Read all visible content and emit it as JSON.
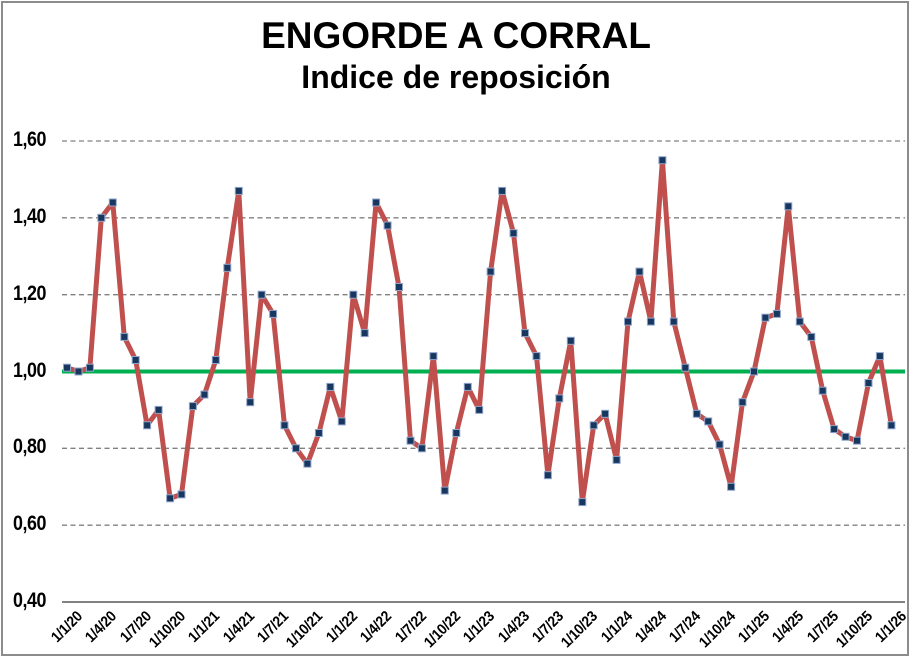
{
  "window": {
    "background": "#ffffff",
    "frame_border_color": "#8c8c8c"
  },
  "chart_data": {
    "type": "line",
    "title": "ENGORDE A CORRAL",
    "subtitle": "Indice de reposición",
    "grid": "horizontal-dashed",
    "legend": "none",
    "y_axis": {
      "min": 0.4,
      "max": 1.6,
      "tick_step": 0.2,
      "tick_values": [
        1.6,
        1.4,
        1.2,
        1.0,
        0.8,
        0.6,
        0.4
      ],
      "tick_labels": [
        "1,60",
        "1,40",
        "1,20",
        "1,00",
        "0,80",
        "0,60",
        "0,40"
      ],
      "gridline_color": "#808080",
      "axis_line_color": "#595959"
    },
    "x_axis": {
      "frequency": "monthly",
      "points_per_tick": 3,
      "tick_labels": [
        "1/1/20",
        "1/4/20",
        "1/7/20",
        "1/10/20",
        "1/1/21",
        "1/4/21",
        "1/7/21",
        "1/10/21",
        "1/1/22",
        "1/4/22",
        "1/7/22",
        "1/10/22",
        "1/1/23",
        "1/4/23",
        "1/7/23",
        "1/10/23",
        "1/1/24",
        "1/4/24",
        "1/7/24",
        "1/10/24",
        "1/1/25",
        "1/4/25",
        "1/7/25",
        "1/10/25",
        "1/1/26"
      ]
    },
    "reference_line": {
      "value": 1.0,
      "color": "#00B050"
    },
    "series": [
      {
        "name": "Indice de reposición",
        "color": "#C0504D",
        "line_width": 5,
        "marker": "square",
        "marker_color": "#17375E",
        "marker_border_color": "#91A5CB",
        "values": [
          1.01,
          1.0,
          1.01,
          1.4,
          1.44,
          1.09,
          1.03,
          0.86,
          0.9,
          0.67,
          0.68,
          0.91,
          0.94,
          1.03,
          1.27,
          1.47,
          0.92,
          1.2,
          1.15,
          0.86,
          0.8,
          0.76,
          0.84,
          0.96,
          0.87,
          1.2,
          1.1,
          1.44,
          1.38,
          1.22,
          0.82,
          0.8,
          1.04,
          0.69,
          0.84,
          0.96,
          0.9,
          1.26,
          1.47,
          1.36,
          1.1,
          1.04,
          0.73,
          0.93,
          1.08,
          0.66,
          0.86,
          0.89,
          0.77,
          1.13,
          1.26,
          1.13,
          1.55,
          1.13,
          1.01,
          0.89,
          0.87,
          0.81,
          0.7,
          0.92,
          1.0,
          1.14,
          1.15,
          1.43,
          1.13,
          1.09,
          0.95,
          0.85,
          0.83,
          0.82,
          0.97,
          1.04,
          0.86
        ]
      }
    ]
  }
}
